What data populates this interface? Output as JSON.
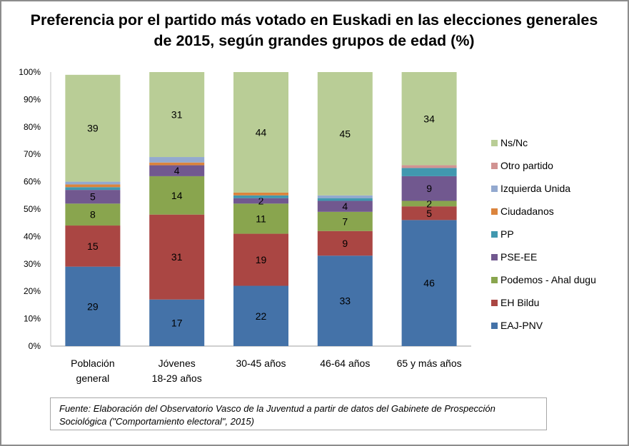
{
  "chart_data": {
    "type": "bar",
    "stacked": "percent",
    "title": "Preferencia por el partido más votado en Euskadi en las elecciones generales de 2015, según grandes grupos de edad (%)",
    "xlabel": "",
    "ylabel": "",
    "ylim": [
      0,
      100
    ],
    "yticks": [
      "0%",
      "10%",
      "20%",
      "30%",
      "40%",
      "50%",
      "60%",
      "70%",
      "80%",
      "90%",
      "100%"
    ],
    "categories": [
      [
        "Población",
        "general"
      ],
      [
        "Jóvenes",
        "18-29 años"
      ],
      [
        "30-45 años"
      ],
      [
        "46-64 años"
      ],
      [
        "65 y más años"
      ]
    ],
    "series": [
      {
        "name": "EAJ-PNV",
        "color": "#4472a8",
        "values": [
          29,
          17,
          22,
          33,
          46
        ],
        "labels": [
          "29",
          "17",
          "22",
          "33",
          "46"
        ]
      },
      {
        "name": "EH Bildu",
        "color": "#aa4643",
        "values": [
          15,
          31,
          19,
          9,
          5
        ],
        "labels": [
          "15",
          "31",
          "19",
          "9",
          "5"
        ]
      },
      {
        "name": "Podemos - Ahal dugu",
        "color": "#89a54e",
        "values": [
          8,
          14,
          11,
          7,
          2
        ],
        "labels": [
          "8",
          "14",
          "11",
          "7",
          "2"
        ]
      },
      {
        "name": "PSE-EE",
        "color": "#71588f",
        "values": [
          5,
          4,
          2,
          4,
          9
        ],
        "labels": [
          "5",
          "4",
          "2",
          "4",
          "9"
        ]
      },
      {
        "name": "PP",
        "color": "#4198af",
        "values": [
          1,
          0,
          1,
          1,
          3
        ],
        "labels": [
          "",
          "",
          "",
          "",
          ""
        ]
      },
      {
        "name": "Ciudadanos",
        "color": "#db843d",
        "values": [
          1,
          1,
          1,
          0,
          0
        ],
        "labels": [
          "",
          "",
          "",
          "",
          ""
        ]
      },
      {
        "name": "Izquierda Unida",
        "color": "#93a9cf",
        "values": [
          1,
          2,
          0,
          1,
          0
        ],
        "labels": [
          "",
          "",
          "",
          "",
          ""
        ]
      },
      {
        "name": "Otro partido",
        "color": "#d19392",
        "values": [
          0,
          0,
          0,
          0,
          1
        ],
        "labels": [
          "",
          "",
          "",
          "",
          ""
        ]
      },
      {
        "name": "Ns/Nc",
        "color": "#b9cd96",
        "values": [
          39,
          31,
          44,
          45,
          34
        ],
        "labels": [
          "39",
          "31",
          "44",
          "45",
          "34"
        ]
      }
    ],
    "legend": {
      "position": "right",
      "order": [
        "Ns/Nc",
        "Otro partido",
        "Izquierda Unida",
        "Ciudadanos",
        "PP",
        "PSE-EE",
        "Podemos - Ahal dugu",
        "EH Bildu",
        "EAJ-PNV"
      ]
    },
    "grid": false
  },
  "source_note": {
    "line1": "Fuente: Elaboración del Observatorio Vasco de la Juventud a partir de datos del Gabinete de Prospección",
    "line2": "Sociológica (\"Comportamiento electoral\", 2015)"
  }
}
